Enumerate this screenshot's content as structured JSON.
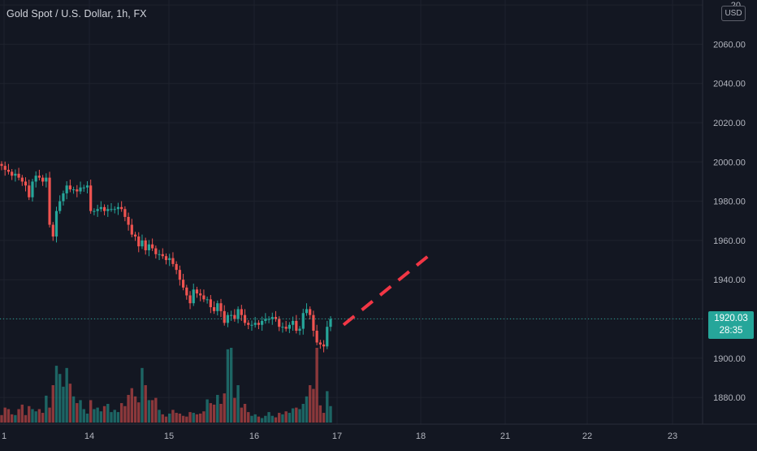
{
  "header": {
    "symbol_title": "Gold Spot / U.S. Dollar, 1h, FX",
    "currency": "USD"
  },
  "last_price": {
    "value": "1920.03",
    "countdown": "28:35"
  },
  "colors": {
    "background": "#131722",
    "grid": "#1e222d",
    "up": "#26a69a",
    "down": "#ef5350",
    "axis_text": "#b2b5be",
    "projection": "#f23645"
  },
  "chart_data": {
    "type": "candlestick",
    "title": "Gold Spot / U.S. Dollar, 1h, FX",
    "y_axis": {
      "range": [
        1866,
        2104
      ],
      "ticks": [
        "1880.00",
        "1900.00",
        "1920.00",
        "1940.00",
        "1960.00",
        "1980.00",
        "2000.00",
        "2020.00",
        "2040.00",
        "2060.00"
      ],
      "top_partial_label": "20"
    },
    "x_axis": {
      "ticks": [
        "1",
        "14",
        "15",
        "16",
        "17",
        "18",
        "21",
        "22",
        "23"
      ]
    },
    "last_price_line": 1920.03,
    "price_points": [
      1998,
      1996,
      1995,
      1993,
      1994,
      1992,
      1990,
      1988,
      1982,
      1990,
      1993,
      1992,
      1990,
      1992,
      1968,
      1962,
      1975,
      1980,
      1984,
      1988,
      1986,
      1986,
      1985,
      1987,
      1987,
      1988,
      1975,
      1975,
      1976,
      1977,
      1975,
      1976,
      1976,
      1976,
      1977,
      1976,
      1972,
      1968,
      1963,
      1962,
      1957,
      1960,
      1955,
      1958,
      1956,
      1953,
      1953,
      1952,
      1950,
      1951,
      1948,
      1945,
      1940,
      1936,
      1932,
      1928,
      1935,
      1933,
      1932,
      1930,
      1930,
      1926,
      1924,
      1928,
      1924,
      1918,
      1922,
      1922,
      1920,
      1925,
      1922,
      1918,
      1917,
      1917,
      1918,
      1917,
      1919,
      1920,
      1920,
      1921,
      1920,
      1916,
      1916,
      1915,
      1917,
      1919,
      1914,
      1915,
      1923,
      1925,
      1922,
      1914,
      1908,
      1907,
      1906,
      1916,
      1920
    ],
    "volume_relative": [
      0.1,
      0.2,
      0.18,
      0.11,
      0.1,
      0.18,
      0.24,
      0.1,
      0.22,
      0.18,
      0.15,
      0.18,
      0.13,
      0.36,
      0.2,
      0.5,
      0.76,
      0.65,
      0.48,
      0.73,
      0.52,
      0.35,
      0.26,
      0.3,
      0.18,
      0.12,
      0.3,
      0.18,
      0.2,
      0.15,
      0.22,
      0.25,
      0.14,
      0.17,
      0.14,
      0.26,
      0.22,
      0.37,
      0.46,
      0.35,
      0.27,
      0.73,
      0.5,
      0.3,
      0.3,
      0.33,
      0.17,
      0.11,
      0.08,
      0.12,
      0.17,
      0.13,
      0.12,
      0.09,
      0.08,
      0.14,
      0.13,
      0.11,
      0.12,
      0.15,
      0.31,
      0.26,
      0.24,
      0.37,
      0.25,
      0.39,
      0.98,
      1.0,
      0.33,
      0.5,
      0.2,
      0.25,
      0.14,
      0.09,
      0.11,
      0.08,
      0.06,
      0.09,
      0.14,
      0.09,
      0.07,
      0.13,
      0.11,
      0.15,
      0.13,
      0.19,
      0.2,
      0.18,
      0.25,
      0.35,
      0.5,
      0.45,
      1.0,
      0.23,
      0.13,
      0.42,
      0.22
    ],
    "projection_line": {
      "style": "dashed",
      "from": {
        "x": "17",
        "y": 1917
      },
      "to": {
        "x": "18",
        "y": 1953
      }
    }
  }
}
